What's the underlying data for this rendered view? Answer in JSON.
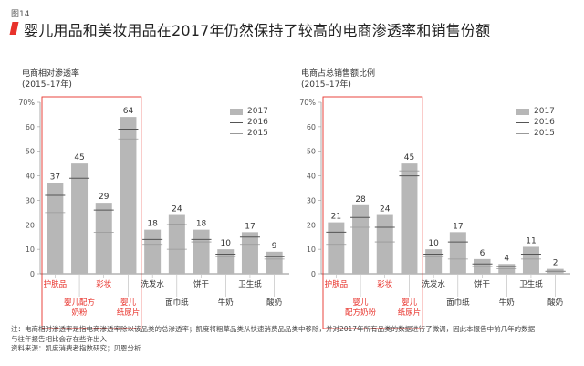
{
  "figure_label": "图14",
  "title": "婴儿用品和美妆用品在2017年仍然保持了较高的电商渗透率和销售份额",
  "note_line1": "注：电商相对渗透率是指电商渗透率除以该品类的总渗透率；凯度将粗草品类从快速消费品品类中移除，并对2017年所有品类的数据进行了微调，因此本报告中前几年的数据",
  "note_line2": "与往年报告相比会存在些许出入",
  "source": "资料来源：凯度消费者指数研究；贝恩分析",
  "colors": {
    "bar": "#b7b7b7",
    "highlight": "#e8322b",
    "line2016": "#555555",
    "line2015": "#999999"
  },
  "chart_data": [
    {
      "type": "bar",
      "title": "电商相对渗透率",
      "subtitle": "(2015–17年)",
      "categories": [
        "护肤品",
        "婴儿配方奶粉",
        "彩妆",
        "婴儿纸尿片",
        "洗发水",
        "面巾纸",
        "饼干",
        "牛奶",
        "卫生纸",
        "酸奶"
      ],
      "category_lines": [
        [
          "护肤品"
        ],
        [
          "婴儿配方",
          "奶粉"
        ],
        [
          "彩妆"
        ],
        [
          "婴儿",
          "纸尿片"
        ],
        [
          "洗发水"
        ],
        [
          "面巾纸"
        ],
        [
          "饼干"
        ],
        [
          "牛奶"
        ],
        [
          "卫生纸"
        ],
        [
          "酸奶"
        ]
      ],
      "highlighted": [
        true,
        true,
        true,
        true,
        false,
        false,
        false,
        false,
        false,
        false
      ],
      "series": [
        {
          "name": "2017",
          "values": [
            37,
            45,
            29,
            64,
            18,
            24,
            18,
            10,
            17,
            9
          ]
        },
        {
          "name": "2016",
          "values": [
            32,
            39,
            26,
            59,
            14,
            20,
            14,
            8,
            15,
            7
          ]
        },
        {
          "name": "2015",
          "values": [
            25,
            37,
            17,
            55,
            12,
            10,
            13,
            7,
            12,
            6
          ]
        }
      ],
      "ylim": [
        0,
        70
      ],
      "yticks": [
        0,
        10,
        20,
        30,
        40,
        50,
        60,
        70
      ],
      "ytick_labels": [
        "0",
        "10",
        "20",
        "30",
        "40",
        "50",
        "60",
        "70%"
      ],
      "legend": [
        "2017",
        "2016",
        "2015"
      ]
    },
    {
      "type": "bar",
      "title": "电商占总销售额比例",
      "subtitle": "(2015–17年)",
      "categories": [
        "护肤品",
        "婴儿配方奶粉",
        "彩妆",
        "婴儿纸尿片",
        "洗发水",
        "面巾纸",
        "饼干",
        "牛奶",
        "卫生纸",
        "酸奶"
      ],
      "category_lines": [
        [
          "护肤品"
        ],
        [
          "婴儿",
          "配方奶粉"
        ],
        [
          "彩妆"
        ],
        [
          "婴儿",
          "纸尿片"
        ],
        [
          "洗发水"
        ],
        [
          "面巾纸"
        ],
        [
          "饼干"
        ],
        [
          "牛奶"
        ],
        [
          "卫生纸"
        ],
        [
          "酸奶"
        ]
      ],
      "highlighted": [
        true,
        true,
        true,
        true,
        false,
        false,
        false,
        false,
        false,
        false
      ],
      "series": [
        {
          "name": "2017",
          "values": [
            21,
            28,
            24,
            45,
            10,
            17,
            6,
            4,
            11,
            2
          ]
        },
        {
          "name": "2016",
          "values": [
            17,
            23,
            19,
            40,
            8,
            13,
            4,
            3,
            8,
            1
          ]
        },
        {
          "name": "2015",
          "values": [
            12,
            19,
            13,
            42,
            7,
            6,
            3,
            2,
            6,
            1
          ]
        }
      ],
      "ylim": [
        0,
        70
      ],
      "yticks": [
        0,
        10,
        20,
        30,
        40,
        50,
        60,
        70
      ],
      "ytick_labels": [
        "0",
        "10",
        "20",
        "30",
        "40",
        "50",
        "60",
        "70%"
      ],
      "legend": [
        "2017",
        "2016",
        "2015"
      ]
    }
  ]
}
